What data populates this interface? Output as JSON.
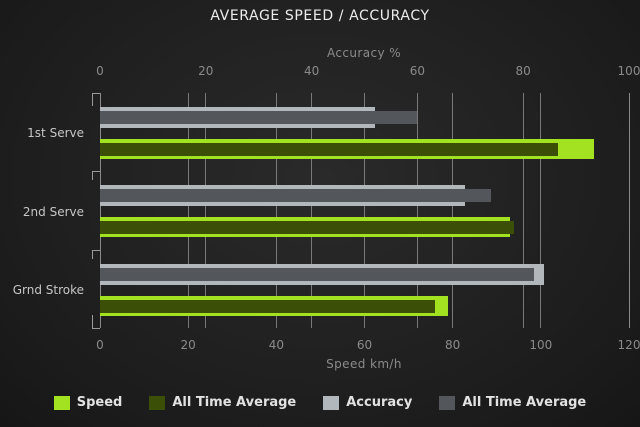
{
  "title": "AVERAGE SPEED / ACCURACY",
  "colors": {
    "background_center": "#2a2a2a",
    "background_edge": "#161616",
    "title_text": "#ececec",
    "axis_text": "#8a8a8a",
    "category_text": "#c6c6c6",
    "gridline": "#8f8f8f",
    "legend_text": "#e2e2e2",
    "speed_bar": "#a3e221",
    "speed_avg_bar": "#3c4f07",
    "accuracy_bar": "#b2b7bc",
    "accuracy_avg_bar": "#53575c"
  },
  "chart_data": {
    "type": "bar",
    "orientation": "horizontal",
    "title": "AVERAGE SPEED / ACCURACY",
    "grid": true,
    "legend_position": "bottom",
    "categories": [
      "1st Serve",
      "2nd Serve",
      "Grnd Stroke"
    ],
    "axes": {
      "accuracy": {
        "label": "Accuracy %",
        "position": "top",
        "min": 0,
        "max": 100,
        "ticks": [
          0,
          20,
          40,
          60,
          80,
          100
        ]
      },
      "speed": {
        "label": "Speed km/h",
        "position": "bottom",
        "min": 0,
        "max": 120,
        "ticks": [
          0,
          20,
          40,
          60,
          80,
          100,
          120
        ]
      }
    },
    "series": [
      {
        "name": "Speed",
        "axis": "speed",
        "layer": "outer",
        "color": "#a3e221",
        "values": [
          112,
          93,
          79
        ]
      },
      {
        "name": "All Time Average",
        "axis": "speed",
        "layer": "inner",
        "color": "#3c4f07",
        "values": [
          104,
          94,
          76
        ]
      },
      {
        "name": "Accuracy",
        "axis": "accuracy",
        "layer": "outer",
        "color": "#b2b7bc",
        "values": [
          52,
          69,
          84
        ]
      },
      {
        "name": "All Time Average",
        "axis": "accuracy",
        "layer": "inner",
        "color": "#53575c",
        "values": [
          60,
          74,
          82
        ]
      }
    ],
    "legend": [
      {
        "label": "Speed",
        "color": "#a3e221"
      },
      {
        "label": "All Time Average",
        "color": "#3c4f07"
      },
      {
        "label": "Accuracy",
        "color": "#b2b7bc"
      },
      {
        "label": "All Time Average",
        "color": "#53575c"
      }
    ]
  }
}
